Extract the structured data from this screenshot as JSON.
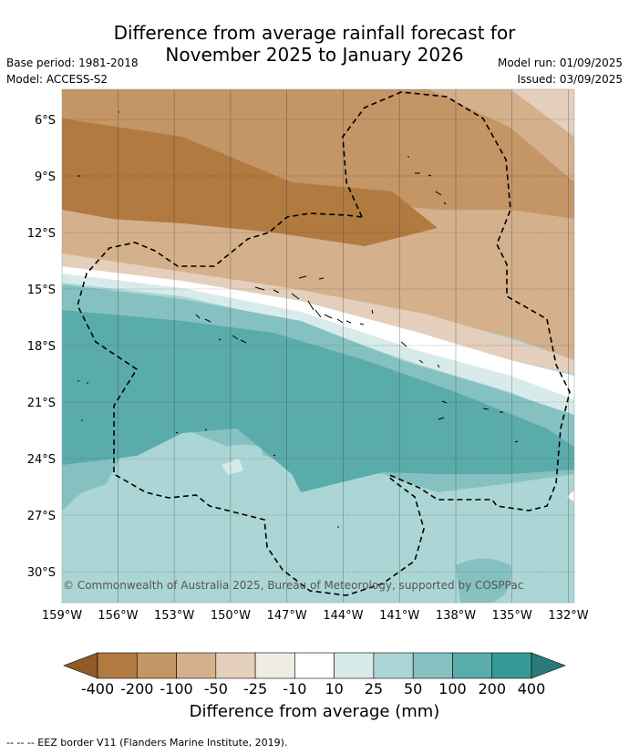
{
  "title": {
    "line1": "Difference from average rainfall forecast for",
    "line2": "November 2025 to January 2026"
  },
  "meta": {
    "base_period": "Base period: 1981-2018",
    "model": "Model: ACCESS-S2",
    "model_run": "Model run: 01/09/2025",
    "issued": "Issued: 03/09/2025"
  },
  "map": {
    "lat_labels": [
      "6°S",
      "9°S",
      "12°S",
      "15°S",
      "18°S",
      "21°S",
      "24°S",
      "27°S",
      "30°S"
    ],
    "lon_labels": [
      "159°W",
      "156°W",
      "153°W",
      "150°W",
      "147°W",
      "144°W",
      "141°W",
      "138°W",
      "135°W",
      "132°W"
    ],
    "copyright": "© Commonwealth of Australia 2025, Bureau of Meteorology, supported by COSPPac"
  },
  "colorbar": {
    "ticks": [
      "-400",
      "-200",
      "-100",
      "-50",
      "-25",
      "-10",
      "10",
      "25",
      "50",
      "100",
      "200",
      "400"
    ],
    "colors": [
      "#8f5a27",
      "#b07a40",
      "#c49565",
      "#d4b08c",
      "#e3cfbc",
      "#f0ebe5",
      "#ffffff",
      "#d7ecea",
      "#acd6d5",
      "#85c1c1",
      "#5aacab",
      "#349a98",
      "#2a7a77"
    ],
    "label": "Difference from average (mm)"
  },
  "legend": {
    "eez": "--  --  -- EEZ border V11 (Flanders Marine Institute, 2019)."
  }
}
